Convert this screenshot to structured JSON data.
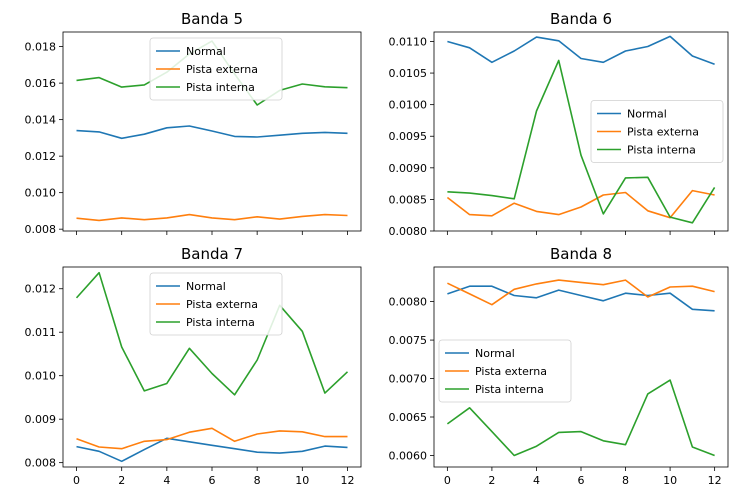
{
  "chart_data": [
    {
      "type": "line",
      "title": "Banda 5",
      "x": [
        0,
        1,
        2,
        3,
        4,
        5,
        6,
        7,
        8,
        9,
        10,
        11,
        12
      ],
      "xticks": [
        0,
        2,
        4,
        6,
        8,
        10,
        12
      ],
      "show_xticklabels": false,
      "ylim": [
        0.0079,
        0.0188
      ],
      "yticks": [
        0.008,
        0.01,
        0.012,
        0.014,
        0.016,
        0.018
      ],
      "ytick_labels": [
        "0.008",
        "0.010",
        "0.012",
        "0.014",
        "0.016",
        "0.018"
      ],
      "legend": "top-center",
      "series": [
        {
          "name": "Normal",
          "color": "#1f77b4",
          "values": [
            0.0134,
            0.01333,
            0.01298,
            0.0132,
            0.01355,
            0.01365,
            0.01338,
            0.01308,
            0.01305,
            0.01315,
            0.01325,
            0.0133,
            0.01325
          ]
        },
        {
          "name": "Pista externa",
          "color": "#ff7f0e",
          "values": [
            0.0086,
            0.00848,
            0.00862,
            0.00852,
            0.00862,
            0.0088,
            0.00862,
            0.00852,
            0.00868,
            0.00855,
            0.0087,
            0.0088,
            0.00875
          ]
        },
        {
          "name": "Pista interna",
          "color": "#2ca02c",
          "values": [
            0.01615,
            0.0163,
            0.01578,
            0.0159,
            0.0166,
            0.0176,
            0.0183,
            0.0165,
            0.0148,
            0.0156,
            0.01595,
            0.0158,
            0.01575
          ]
        }
      ]
    },
    {
      "type": "line",
      "title": "Banda 6",
      "x": [
        0,
        1,
        2,
        3,
        4,
        5,
        6,
        7,
        8,
        9,
        10,
        11,
        12
      ],
      "xticks": [
        0,
        2,
        4,
        6,
        8,
        10,
        12
      ],
      "show_xticklabels": false,
      "ylim": [
        0.008,
        0.01115
      ],
      "yticks": [
        0.008,
        0.0085,
        0.009,
        0.0095,
        0.01,
        0.0105,
        0.011
      ],
      "ytick_labels": [
        "0.0080",
        "0.0085",
        "0.0090",
        "0.0095",
        "0.0100",
        "0.0105",
        "0.0110"
      ],
      "legend": "center-right",
      "series": [
        {
          "name": "Normal",
          "color": "#1f77b4",
          "values": [
            0.011,
            0.0109,
            0.01067,
            0.01085,
            0.01107,
            0.01101,
            0.01073,
            0.01067,
            0.01085,
            0.01092,
            0.01108,
            0.01077,
            0.01064
          ]
        },
        {
          "name": "Pista externa",
          "color": "#ff7f0e",
          "values": [
            0.00853,
            0.00826,
            0.00824,
            0.00844,
            0.00831,
            0.00826,
            0.00838,
            0.00857,
            0.00861,
            0.00832,
            0.00821,
            0.00864,
            0.00857
          ]
        },
        {
          "name": "Pista interna",
          "color": "#2ca02c",
          "values": [
            0.00862,
            0.0086,
            0.00856,
            0.00851,
            0.0099,
            0.0107,
            0.0092,
            0.00827,
            0.00884,
            0.00885,
            0.00822,
            0.00813,
            0.00869
          ]
        }
      ]
    },
    {
      "type": "line",
      "title": "Banda 7",
      "x": [
        0,
        1,
        2,
        3,
        4,
        5,
        6,
        7,
        8,
        9,
        10,
        11,
        12
      ],
      "xticks": [
        0,
        2,
        4,
        6,
        8,
        10,
        12
      ],
      "xtick_labels": [
        "0",
        "2",
        "4",
        "6",
        "8",
        "10",
        "12"
      ],
      "show_xticklabels": true,
      "ylim": [
        0.0079,
        0.0125
      ],
      "yticks": [
        0.008,
        0.009,
        0.01,
        0.011,
        0.012
      ],
      "ytick_labels": [
        "0.008",
        "0.009",
        "0.010",
        "0.011",
        "0.012"
      ],
      "legend": "top-center",
      "series": [
        {
          "name": "Normal",
          "color": "#1f77b4",
          "values": [
            0.00837,
            0.00826,
            0.00803,
            0.0083,
            0.00856,
            0.00848,
            0.0084,
            0.00832,
            0.00824,
            0.00822,
            0.00826,
            0.00838,
            0.00835
          ]
        },
        {
          "name": "Pista externa",
          "color": "#ff7f0e",
          "values": [
            0.00855,
            0.00836,
            0.00832,
            0.00849,
            0.00853,
            0.0087,
            0.00879,
            0.00849,
            0.00866,
            0.00873,
            0.00871,
            0.0086,
            0.0086
          ]
        },
        {
          "name": "Pista interna",
          "color": "#2ca02c",
          "values": [
            0.01179,
            0.01237,
            0.01066,
            0.00965,
            0.00982,
            0.01063,
            0.01005,
            0.00956,
            0.01036,
            0.01162,
            0.01102,
            0.0096,
            0.01009
          ]
        }
      ]
    },
    {
      "type": "line",
      "title": "Banda 8",
      "x": [
        0,
        1,
        2,
        3,
        4,
        5,
        6,
        7,
        8,
        9,
        10,
        11,
        12
      ],
      "xticks": [
        0,
        2,
        4,
        6,
        8,
        10,
        12
      ],
      "xtick_labels": [
        "0",
        "2",
        "4",
        "6",
        "8",
        "10",
        "12"
      ],
      "show_xticklabels": true,
      "ylim": [
        0.00585,
        0.00845
      ],
      "yticks": [
        0.006,
        0.0065,
        0.007,
        0.0075,
        0.008
      ],
      "ytick_labels": [
        "0.0060",
        "0.0065",
        "0.0070",
        "0.0075",
        "0.0080"
      ],
      "legend": "center-left",
      "series": [
        {
          "name": "Normal",
          "color": "#1f77b4",
          "values": [
            0.0081,
            0.0082,
            0.0082,
            0.00808,
            0.00805,
            0.00815,
            0.00808,
            0.00801,
            0.00811,
            0.00808,
            0.00811,
            0.0079,
            0.00788
          ]
        },
        {
          "name": "Pista externa",
          "color": "#ff7f0e",
          "values": [
            0.00824,
            0.0081,
            0.00796,
            0.00816,
            0.00823,
            0.00828,
            0.00825,
            0.00822,
            0.00828,
            0.00806,
            0.00819,
            0.0082,
            0.00813
          ]
        },
        {
          "name": "Pista interna",
          "color": "#2ca02c",
          "values": [
            0.00641,
            0.00662,
            0.00631,
            0.006,
            0.00612,
            0.0063,
            0.00631,
            0.00619,
            0.00614,
            0.0068,
            0.00698,
            0.00611,
            0.006
          ]
        }
      ]
    }
  ]
}
